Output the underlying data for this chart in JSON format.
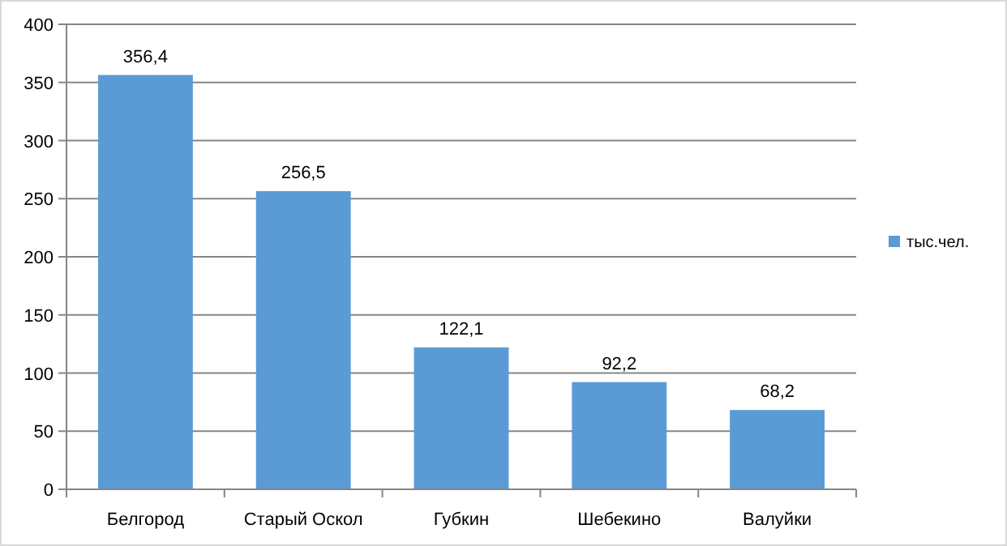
{
  "chart_data": {
    "type": "bar",
    "categories": [
      "Белгород",
      "Старый Оскол",
      "Губкин",
      "Шебекино",
      "Валуйки"
    ],
    "series": [
      {
        "name": "тыс.чел.",
        "color": "#5b9bd5",
        "values": [
          356.4,
          256.5,
          122.1,
          92.2,
          68.2
        ],
        "value_labels": [
          "356,4",
          "256,5",
          "122,1",
          "92,2",
          "68,2"
        ]
      }
    ],
    "ylim": [
      0,
      400
    ],
    "yticks": [
      0,
      50,
      100,
      150,
      200,
      250,
      300,
      350,
      400
    ],
    "grid": "y",
    "legend": "right"
  }
}
